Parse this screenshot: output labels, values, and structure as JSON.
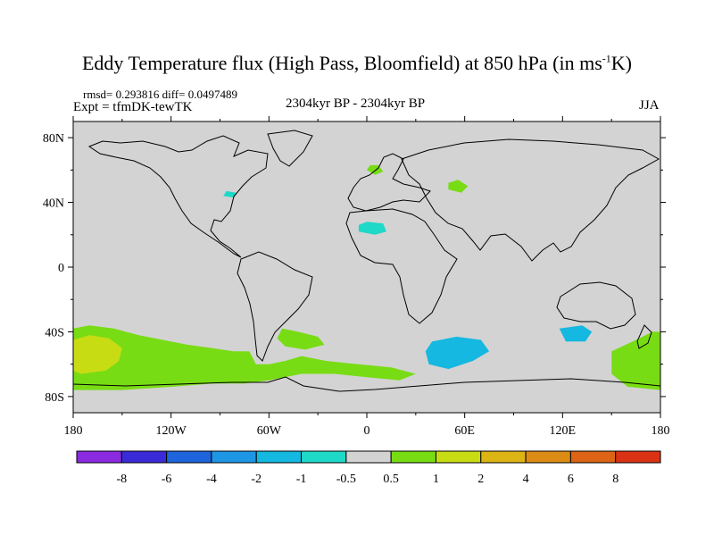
{
  "chart_data": {
    "type": "heatmap",
    "title_main": "Eddy Temperature flux (High Pass, Bloomfield) at 850 hPa (in ms",
    "title_sup": "-1",
    "title_end": "K)",
    "stats": "rmsd= 0.293816 diff= 0.0497489",
    "experiment": "Expt = tfmDK-tewTK",
    "period": "2304kyr BP - 2304kyr BP",
    "season": "JJA",
    "xlim": [
      -180,
      180
    ],
    "ylim": [
      -90,
      90
    ],
    "x_ticks": [
      {
        "value": -180,
        "label": "180"
      },
      {
        "value": -120,
        "label": "120W"
      },
      {
        "value": -60,
        "label": "60W"
      },
      {
        "value": 0,
        "label": "0"
      },
      {
        "value": 60,
        "label": "60E"
      },
      {
        "value": 120,
        "label": "120E"
      },
      {
        "value": 180,
        "label": "180"
      }
    ],
    "y_ticks": [
      {
        "value": 80,
        "label": "80N"
      },
      {
        "value": 40,
        "label": "40N"
      },
      {
        "value": 0,
        "label": "0"
      },
      {
        "value": -40,
        "label": "40S"
      },
      {
        "value": -80,
        "label": "80S"
      }
    ],
    "colorbar": {
      "colors": [
        "#8a2be2",
        "#3a2bd8",
        "#1e64dc",
        "#1e96e6",
        "#14b8e0",
        "#1ed8c8",
        "#d3d3d3",
        "#78dc14",
        "#c8dc14",
        "#dcb414",
        "#dc8c14",
        "#dc6414",
        "#dc3214"
      ],
      "labels": [
        "-8",
        "-6",
        "-4",
        "-2",
        "-1",
        "-0.5",
        "0.5",
        "1",
        "2",
        "4",
        "6",
        "8"
      ]
    },
    "background_color": "#d3d3d3",
    "regions": [
      {
        "name": "southern-pacific-green-band",
        "value": 1,
        "color": "#78dc14",
        "points": [
          [
            -180,
            -38
          ],
          [
            -170,
            -36
          ],
          [
            -155,
            -38
          ],
          [
            -140,
            -42
          ],
          [
            -125,
            -45
          ],
          [
            -110,
            -48
          ],
          [
            -95,
            -50
          ],
          [
            -82,
            -52
          ],
          [
            -72,
            -52
          ],
          [
            -68,
            -60
          ],
          [
            -60,
            -60
          ],
          [
            -50,
            -58
          ],
          [
            -40,
            -55
          ],
          [
            -25,
            -58
          ],
          [
            -5,
            -60
          ],
          [
            15,
            -62
          ],
          [
            30,
            -66
          ],
          [
            20,
            -70
          ],
          [
            0,
            -68
          ],
          [
            -20,
            -66
          ],
          [
            -40,
            -66
          ],
          [
            -60,
            -70
          ],
          [
            -75,
            -72
          ],
          [
            -95,
            -72
          ],
          [
            -120,
            -74
          ],
          [
            -150,
            -76
          ],
          [
            -180,
            -76
          ]
        ]
      },
      {
        "name": "south-pacific-yellow-patch",
        "value": 2,
        "color": "#c8dc14",
        "points": [
          [
            -180,
            -45
          ],
          [
            -170,
            -42
          ],
          [
            -158,
            -44
          ],
          [
            -150,
            -50
          ],
          [
            -152,
            -58
          ],
          [
            -160,
            -64
          ],
          [
            -175,
            -66
          ],
          [
            -180,
            -64
          ]
        ]
      },
      {
        "name": "south-atlantic-green-patch",
        "value": 1,
        "color": "#78dc14",
        "points": [
          [
            -52,
            -38
          ],
          [
            -42,
            -40
          ],
          [
            -30,
            -43
          ],
          [
            -26,
            -48
          ],
          [
            -38,
            -51
          ],
          [
            -50,
            -49
          ],
          [
            -55,
            -44
          ]
        ]
      },
      {
        "name": "south-indian-cyan-patch",
        "value": -1,
        "color": "#14b8e0",
        "points": [
          [
            40,
            -46
          ],
          [
            55,
            -43
          ],
          [
            70,
            -45
          ],
          [
            75,
            -52
          ],
          [
            65,
            -58
          ],
          [
            50,
            -63
          ],
          [
            38,
            -60
          ],
          [
            36,
            -52
          ]
        ]
      },
      {
        "name": "australia-south-cyan-patch",
        "value": -1,
        "color": "#14b8e0",
        "points": [
          [
            118,
            -38
          ],
          [
            132,
            -36
          ],
          [
            138,
            -40
          ],
          [
            134,
            -46
          ],
          [
            122,
            -46
          ]
        ]
      },
      {
        "name": "southwest-pacific-green-patch",
        "value": 1,
        "color": "#78dc14",
        "points": [
          [
            150,
            -52
          ],
          [
            165,
            -45
          ],
          [
            175,
            -40
          ],
          [
            180,
            -40
          ],
          [
            180,
            -76
          ],
          [
            160,
            -74
          ],
          [
            150,
            -66
          ]
        ]
      },
      {
        "name": "sahara-cyan-patch",
        "value": -1,
        "color": "#1ed8c8",
        "points": [
          [
            -5,
            22
          ],
          [
            5,
            20
          ],
          [
            12,
            22
          ],
          [
            10,
            27
          ],
          [
            0,
            28
          ],
          [
            -5,
            26
          ]
        ]
      },
      {
        "name": "europe-green-patch",
        "value": 1,
        "color": "#78dc14",
        "points": [
          [
            0,
            60
          ],
          [
            5,
            57
          ],
          [
            10,
            59
          ],
          [
            7,
            63
          ],
          [
            2,
            63
          ]
        ]
      },
      {
        "name": "central-asia-green-patch",
        "value": 1,
        "color": "#78dc14",
        "points": [
          [
            50,
            48
          ],
          [
            58,
            46
          ],
          [
            62,
            50
          ],
          [
            56,
            54
          ],
          [
            50,
            52
          ]
        ]
      },
      {
        "name": "great-lakes-cyan-patch",
        "value": -1,
        "color": "#1ed8c8",
        "points": [
          [
            -88,
            44
          ],
          [
            -82,
            43
          ],
          [
            -80,
            46
          ],
          [
            -86,
            47
          ]
        ]
      }
    ]
  }
}
